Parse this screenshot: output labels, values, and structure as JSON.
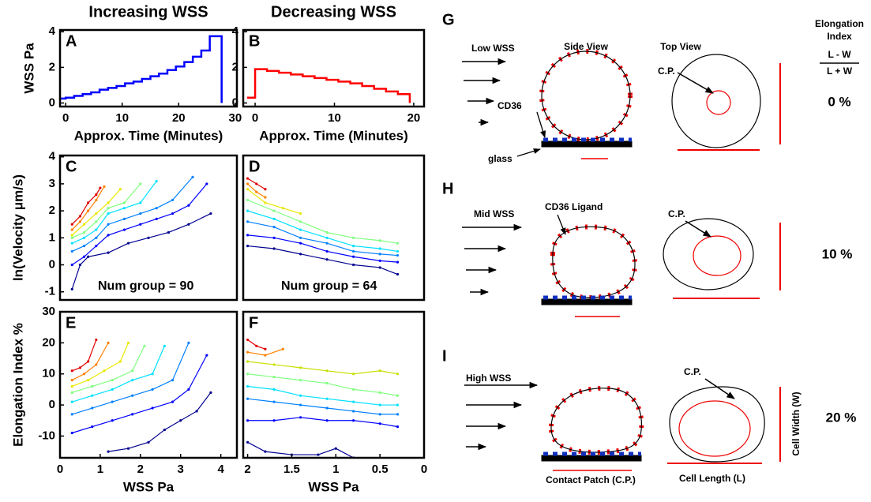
{
  "chart_data": [
    {
      "type": "step",
      "title": "Increasing WSS",
      "label": "A",
      "ylabel": "WSS Pa",
      "xlabel": "Approx. Time (Minutes)",
      "xlim": [
        -1,
        30.3
      ],
      "ylim": [
        -0.2,
        4.1
      ],
      "xticks": [
        0,
        10,
        20,
        30
      ],
      "yticks": [
        0,
        2,
        4
      ],
      "series": [
        {
          "color": "#0000ff",
          "x": [
            -1,
            0,
            1.5,
            3,
            4.5,
            6,
            7.5,
            9,
            10.5,
            12,
            13.5,
            15,
            16.5,
            18,
            19.5,
            21,
            22.5,
            24,
            25.5,
            27.6
          ],
          "values": [
            0.25,
            0.3,
            0.4,
            0.5,
            0.6,
            0.75,
            0.85,
            0.95,
            1.1,
            1.2,
            1.35,
            1.5,
            1.65,
            1.85,
            2.05,
            2.3,
            2.6,
            2.95,
            3.75,
            0
          ]
        }
      ]
    },
    {
      "type": "step",
      "title": "Decreasing WSS",
      "label": "B",
      "xlabel": "Approx. Time (Minutes)",
      "xlim": [
        -1.5,
        21.3
      ],
      "ylim": [
        -0.2,
        4.1
      ],
      "xticks": [
        0,
        10,
        20
      ],
      "yticks": [
        0,
        2,
        4
      ],
      "series": [
        {
          "color": "#ff0000",
          "x": [
            -1,
            0,
            1.5,
            3,
            4.5,
            6,
            7.5,
            9,
            10.5,
            12,
            13.5,
            15,
            16.5,
            18,
            19.5
          ],
          "values": [
            0.3,
            1.9,
            1.8,
            1.7,
            1.6,
            1.5,
            1.4,
            1.3,
            1.2,
            1.1,
            0.95,
            0.8,
            0.65,
            0.5,
            0
          ]
        }
      ]
    },
    {
      "type": "line",
      "label": "C",
      "ylabel": "ln(Velocity μm/s)",
      "annotation": "Num group = 90",
      "xlim": [
        0,
        4.4
      ],
      "ylim": [
        -1.3,
        4.05
      ],
      "yticks": [
        -1,
        0,
        1,
        2,
        3,
        4
      ],
      "series": [
        {
          "color": "#00008f",
          "x": [
            0.3,
            0.5,
            0.7,
            1.2,
            1.7,
            2.2,
            2.7,
            3.2,
            3.75
          ],
          "values": [
            -0.9,
            0.0,
            0.3,
            0.45,
            0.8,
            1.0,
            1.2,
            1.5,
            1.9
          ]
        },
        {
          "color": "#0000ff",
          "x": [
            0.3,
            0.6,
            0.9,
            1.2,
            1.6,
            2.0,
            2.4,
            2.8,
            3.2,
            3.65
          ],
          "values": [
            0,
            0.3,
            0.7,
            1.1,
            1.3,
            1.5,
            1.7,
            1.9,
            2.2,
            3.0
          ]
        },
        {
          "color": "#0080ff",
          "x": [
            0.3,
            0.6,
            0.9,
            1.2,
            1.6,
            2.0,
            2.4,
            2.8,
            3.3
          ],
          "values": [
            0.5,
            0.7,
            1.0,
            1.5,
            1.7,
            1.9,
            2.1,
            2.4,
            3.25
          ]
        },
        {
          "color": "#00e0ff",
          "x": [
            0.3,
            0.6,
            0.9,
            1.2,
            1.6,
            2.0,
            2.4
          ],
          "values": [
            0.8,
            1.0,
            1.3,
            1.9,
            2.1,
            2.3,
            3.1
          ]
        },
        {
          "color": "#80ff80",
          "x": [
            0.3,
            0.6,
            0.9,
            1.2,
            1.6,
            2.0
          ],
          "values": [
            1.0,
            1.2,
            1.6,
            2.1,
            2.3,
            3.0
          ]
        },
        {
          "color": "#e8e800",
          "x": [
            0.3,
            0.6,
            0.9,
            1.2,
            1.5
          ],
          "values": [
            1.1,
            1.5,
            1.9,
            2.3,
            2.8
          ]
        },
        {
          "color": "#ff8000",
          "x": [
            0.3,
            0.5,
            0.7,
            0.9,
            1.1
          ],
          "values": [
            1.3,
            1.6,
            2.0,
            2.4,
            2.9
          ]
        },
        {
          "color": "#e00000",
          "x": [
            0.3,
            0.5,
            0.7,
            0.9,
            1.0
          ],
          "values": [
            1.5,
            1.8,
            2.3,
            2.6,
            2.85
          ]
        }
      ]
    },
    {
      "type": "line",
      "label": "D",
      "annotation": "Num group = 64",
      "xlim": [
        2.05,
        0
      ],
      "ylim": [
        -1.3,
        4.05
      ],
      "series": [
        {
          "color": "#00008f",
          "x": [
            2.0,
            1.7,
            1.4,
            1.1,
            0.8,
            0.5,
            0.3
          ],
          "values": [
            0.7,
            0.6,
            0.4,
            0.2,
            0.0,
            -0.1,
            -0.35
          ]
        },
        {
          "color": "#0000ff",
          "x": [
            2.0,
            1.7,
            1.4,
            1.1,
            0.8,
            0.5,
            0.3
          ],
          "values": [
            1.1,
            1.0,
            0.8,
            0.5,
            0.3,
            0.15,
            0.1
          ]
        },
        {
          "color": "#0080ff",
          "x": [
            2.0,
            1.7,
            1.4,
            1.1,
            0.8,
            0.5,
            0.3
          ],
          "values": [
            1.6,
            1.4,
            1.0,
            0.8,
            0.5,
            0.4,
            0.35
          ]
        },
        {
          "color": "#00e0ff",
          "x": [
            2.0,
            1.7,
            1.4,
            1.1,
            0.8,
            0.5,
            0.3
          ],
          "values": [
            2.0,
            1.7,
            1.3,
            1.0,
            0.7,
            0.6,
            0.5
          ]
        },
        {
          "color": "#80ff80",
          "x": [
            2.0,
            1.7,
            1.4,
            1.1,
            0.8,
            0.5,
            0.3
          ],
          "values": [
            2.4,
            2.0,
            1.6,
            1.2,
            1.0,
            0.9,
            0.8
          ]
        },
        {
          "color": "#e8e800",
          "x": [
            2.0,
            1.8,
            1.6,
            1.4
          ],
          "values": [
            2.8,
            2.3,
            2.1,
            1.9
          ]
        },
        {
          "color": "#ff8000",
          "x": [
            2.0,
            1.9,
            1.8
          ],
          "values": [
            3.0,
            2.7,
            2.5
          ]
        },
        {
          "color": "#e00000",
          "x": [
            2.0,
            1.9,
            1.8
          ],
          "values": [
            3.2,
            3.0,
            2.8
          ]
        }
      ]
    },
    {
      "type": "line",
      "label": "E",
      "ylabel": "Elongation Index %",
      "xlabel": "WSS Pa",
      "xlim": [
        0,
        4.4
      ],
      "ylim": [
        -17,
        30
      ],
      "xticks": [
        0,
        1,
        2,
        3,
        4
      ],
      "yticks": [
        -10,
        0,
        10,
        20,
        30
      ],
      "series": [
        {
          "color": "#00008f",
          "x": [
            1.2,
            1.7,
            2.2,
            2.6,
            3.0,
            3.4,
            3.75
          ],
          "values": [
            -15,
            -14,
            -12,
            -8,
            -5,
            -2,
            4
          ]
        },
        {
          "color": "#0000ff",
          "x": [
            0.3,
            0.8,
            1.3,
            1.8,
            2.3,
            2.8,
            3.2,
            3.65
          ],
          "values": [
            -9,
            -7,
            -5,
            -3,
            -1,
            1,
            5,
            16
          ]
        },
        {
          "color": "#0080ff",
          "x": [
            0.3,
            0.8,
            1.3,
            1.8,
            2.3,
            2.8,
            3.2
          ],
          "values": [
            -3,
            -1,
            1,
            3,
            5,
            8,
            20
          ]
        },
        {
          "color": "#00e0ff",
          "x": [
            0.3,
            0.8,
            1.3,
            1.8,
            2.3,
            2.6
          ],
          "values": [
            1,
            3,
            5,
            8,
            10,
            19
          ]
        },
        {
          "color": "#80ff80",
          "x": [
            0.3,
            0.8,
            1.3,
            1.8,
            2.1
          ],
          "values": [
            4,
            6,
            8,
            11,
            19
          ]
        },
        {
          "color": "#e8e800",
          "x": [
            0.3,
            0.7,
            1.1,
            1.5,
            1.7
          ],
          "values": [
            6,
            8,
            11,
            14,
            20
          ]
        },
        {
          "color": "#ff8000",
          "x": [
            0.3,
            0.6,
            0.9,
            1.2
          ],
          "values": [
            8,
            10,
            13,
            20
          ]
        },
        {
          "color": "#e00000",
          "x": [
            0.3,
            0.5,
            0.7,
            0.9
          ],
          "values": [
            11,
            12,
            14,
            21
          ]
        }
      ]
    },
    {
      "type": "line",
      "label": "F",
      "xlabel": "WSS Pa",
      "xlim": [
        2.05,
        0
      ],
      "ylim": [
        -17,
        30
      ],
      "xticks": [
        2,
        1.5,
        1,
        0.5,
        0
      ],
      "series": [
        {
          "color": "#00008f",
          "x": [
            2.0,
            1.8,
            1.5,
            1.2,
            1.0,
            0.8
          ],
          "values": [
            -12,
            -15,
            -16,
            -16,
            -14,
            -17
          ]
        },
        {
          "color": "#0000ff",
          "x": [
            2.0,
            1.7,
            1.4,
            1.1,
            0.8,
            0.5,
            0.3
          ],
          "values": [
            -5,
            -5,
            -4,
            -5,
            -5,
            -6,
            -7
          ]
        },
        {
          "color": "#0080ff",
          "x": [
            2.0,
            1.7,
            1.4,
            1.1,
            0.8,
            0.5,
            0.3
          ],
          "values": [
            2,
            1,
            0,
            -1,
            -2,
            -3,
            -3
          ]
        },
        {
          "color": "#00e0ff",
          "x": [
            2.0,
            1.7,
            1.4,
            1.1,
            0.8,
            0.5,
            0.3
          ],
          "values": [
            6,
            5,
            3,
            2,
            1,
            0,
            0
          ]
        },
        {
          "color": "#80ff80",
          "x": [
            2.0,
            1.7,
            1.4,
            1.1,
            0.8,
            0.5,
            0.3
          ],
          "values": [
            10,
            9,
            8,
            7,
            5,
            4,
            3
          ]
        },
        {
          "color": "#c8e000",
          "x": [
            2.0,
            1.7,
            1.4,
            1.1,
            0.8,
            0.5,
            0.3
          ],
          "values": [
            14,
            13,
            12,
            11,
            10,
            11,
            10
          ]
        },
        {
          "color": "#ff8000",
          "x": [
            2.0,
            1.8,
            1.6
          ],
          "values": [
            17,
            16,
            18
          ]
        },
        {
          "color": "#e00000",
          "x": [
            2.0,
            1.9,
            1.8
          ],
          "values": [
            21,
            19,
            18
          ]
        }
      ]
    }
  ],
  "diagram": {
    "header": {
      "title_lines": [
        "Elongation",
        "Index"
      ],
      "numerator": "L - W",
      "denominator": "L + W"
    },
    "panels": [
      {
        "label": "G",
        "flow": "Low WSS",
        "side_view": "Side View",
        "top_view": "Top View",
        "contact": "C.P.",
        "receptor": "CD36",
        "surface": "glass",
        "index": "0 %"
      },
      {
        "label": "H",
        "flow": "Mid WSS",
        "contact": "C.P.",
        "receptor": "CD36 Ligand",
        "index": "10 %"
      },
      {
        "label": "I",
        "flow": "High WSS",
        "contact": "C.P.",
        "patch": "Contact Patch (C.P.)",
        "length": "Cell Length (L)",
        "width": "Cell Width (W)",
        "index": "20 %"
      }
    ]
  }
}
